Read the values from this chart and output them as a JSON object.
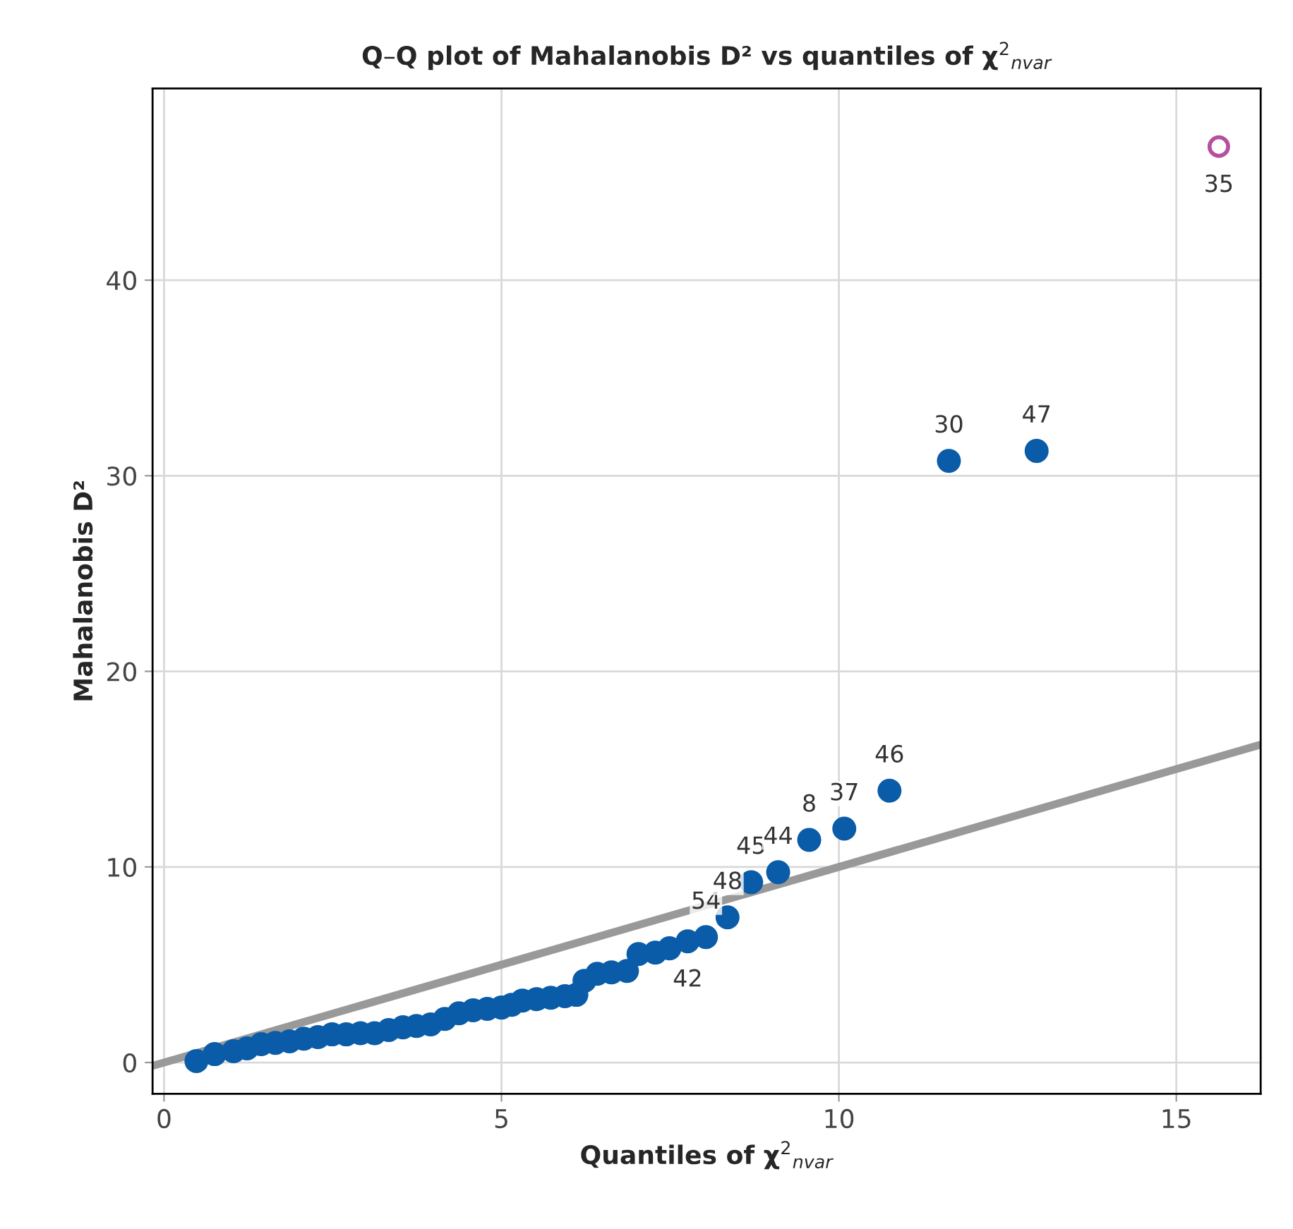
{
  "chart_data": {
    "type": "scatter",
    "title": "Q–Q plot of Mahalanobis D² vs quantiles of χ$^{2}$$_{nvar}$",
    "xlabel": "Quantiles of χ$^{2}$$_{nvar}$",
    "ylabel": "Mahalanobis D²",
    "series": [
      {
        "type": "line",
        "color": "#999999",
        "x": [
          -0.17,
          16.25
        ],
        "values": [
          -0.17,
          16.25
        ],
        "marker": "none"
      },
      {
        "color": "#0a5ca8",
        "marker": "circle",
        "x": [
          0.48,
          0.75,
          1.03,
          1.23,
          1.44,
          1.65,
          1.86,
          2.07,
          2.28,
          2.49,
          2.7,
          2.91,
          3.12,
          3.33,
          3.54,
          3.74,
          3.95,
          4.16,
          4.37,
          4.58,
          4.79,
          5.0,
          5.15,
          5.31,
          5.52,
          5.73,
          5.94,
          6.11,
          6.23,
          6.42,
          6.63,
          6.86,
          7.03,
          7.28,
          7.49,
          7.76,
          8.03,
          8.35,
          8.7,
          9.1,
          9.56,
          10.08,
          10.75,
          11.63,
          12.93
        ],
        "values": [
          0.07,
          0.43,
          0.58,
          0.72,
          0.94,
          1.0,
          1.08,
          1.22,
          1.3,
          1.44,
          1.44,
          1.5,
          1.5,
          1.66,
          1.8,
          1.87,
          1.95,
          2.23,
          2.52,
          2.67,
          2.74,
          2.81,
          2.95,
          3.17,
          3.24,
          3.31,
          3.39,
          3.46,
          4.18,
          4.54,
          4.61,
          4.68,
          5.55,
          5.62,
          5.84,
          6.2,
          6.41,
          7.42,
          9.22,
          9.73,
          11.38,
          11.96,
          13.9,
          30.76,
          31.27
        ]
      },
      {
        "color": "#b5509f",
        "marker": "circle",
        "x": [
          15.63
        ],
        "values": [
          46.83
        ]
      }
    ],
    "annotations": [
      {
        "text": "42",
        "x": 7.76,
        "y": 6.2
      },
      {
        "text": "54",
        "x": 8.03,
        "y": 6.41
      },
      {
        "text": "48",
        "x": 8.35,
        "y": 7.42
      },
      {
        "text": "45",
        "x": 8.7,
        "y": 9.22
      },
      {
        "text": "44",
        "x": 9.1,
        "y": 9.73
      },
      {
        "text": "8",
        "x": 9.56,
        "y": 11.38
      },
      {
        "text": "37",
        "x": 10.08,
        "y": 11.96
      },
      {
        "text": "46",
        "x": 10.75,
        "y": 13.9
      },
      {
        "text": "30",
        "x": 11.63,
        "y": 30.76
      },
      {
        "text": "47",
        "x": 12.93,
        "y": 31.27
      },
      {
        "text": "35",
        "x": 15.63,
        "y": 46.83
      }
    ],
    "xlim": [
      -0.17,
      16.25
    ],
    "ylim": [
      -1.6,
      49.8
    ],
    "xticks": [
      0,
      5,
      10,
      15
    ],
    "yticks": [
      0,
      10,
      20,
      30,
      40
    ],
    "grid": true,
    "legend": false
  }
}
